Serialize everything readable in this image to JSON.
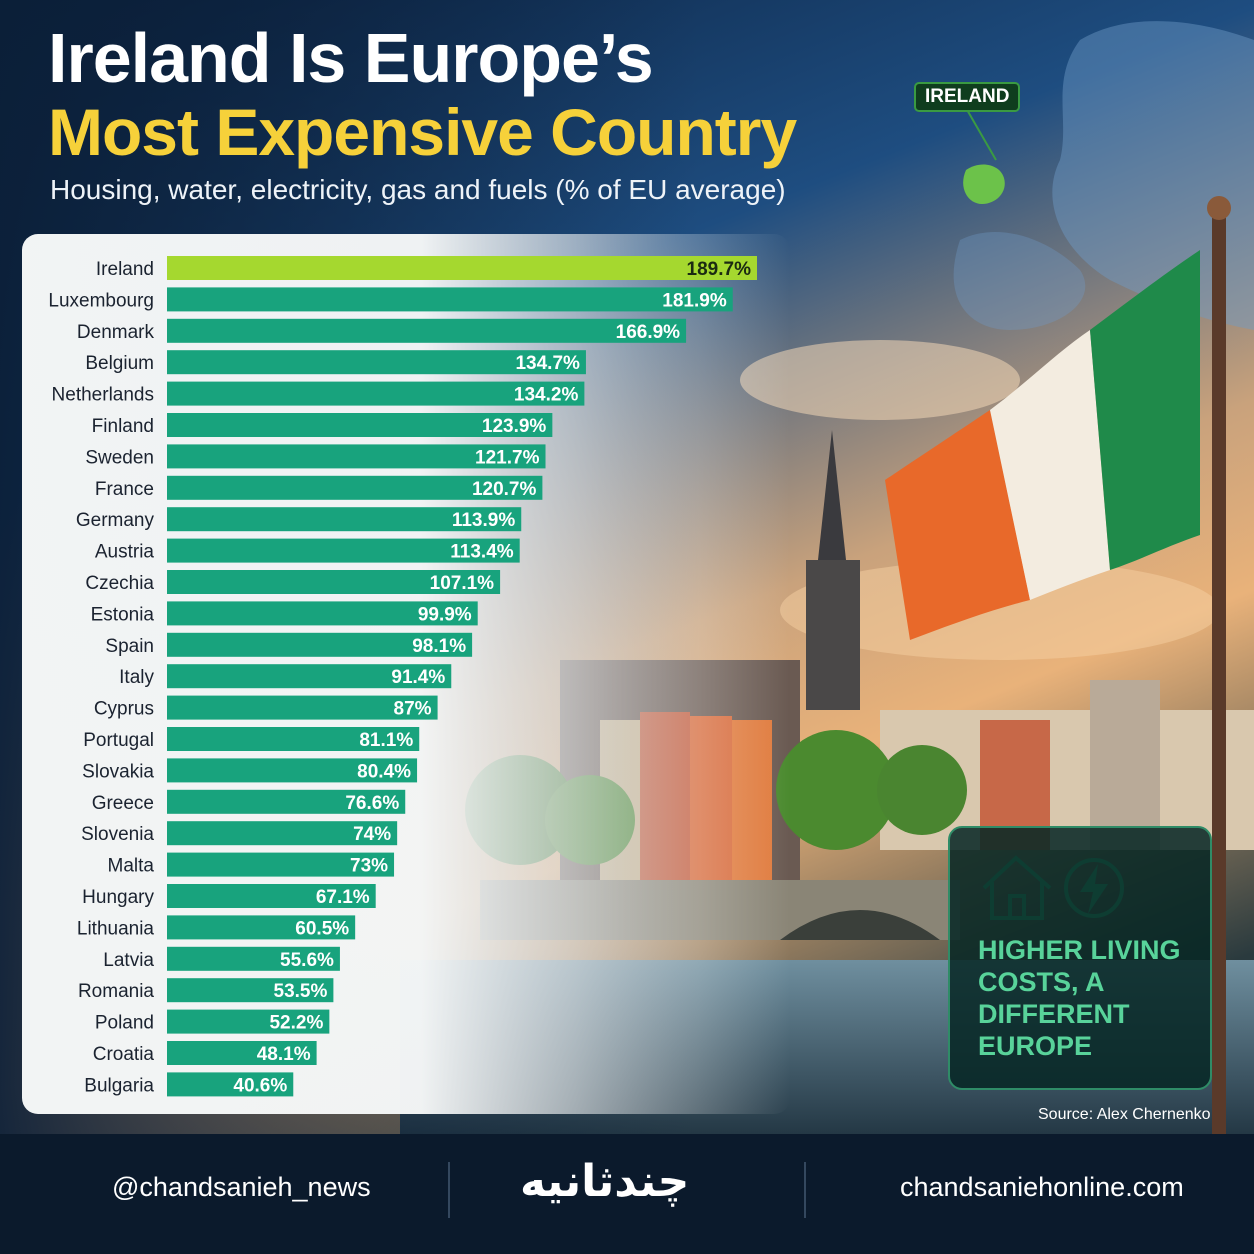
{
  "title_line1": "Ireland Is Europe’s",
  "title_line2": "Most Expensive Country",
  "subtitle": "Housing, water, electricity, gas and fuels (% of EU average)",
  "map_tag": "IRELAND",
  "callout": "HIGHER LIVING COSTS, A DIFFERENT EUROPE",
  "source": "Source: Alex Chernenko",
  "footer": {
    "telegram": "@chandsanieh_news",
    "brand": "چندثانیه",
    "website": "chandsaniehonline.com"
  },
  "icons": [
    "telegram-icon",
    "stopwatch-icon",
    "globe-icon",
    "house-icon",
    "lightning-icon"
  ],
  "colors": {
    "highlight_bar": "#a5d82f",
    "bar": "#18a37d",
    "title_accent": "#f6d13a",
    "callout_text": "#58d39a",
    "footer_bg": "#0b1a2c"
  },
  "chart_data": {
    "type": "bar",
    "orientation": "horizontal",
    "value_suffix": "%",
    "highlight": "Ireland",
    "categories": [
      "Ireland",
      "Luxembourg",
      "Denmark",
      "Belgium",
      "Netherlands",
      "Finland",
      "Sweden",
      "France",
      "Germany",
      "Austria",
      "Czechia",
      "Estonia",
      "Spain",
      "Italy",
      "Cyprus",
      "Portugal",
      "Slovakia",
      "Greece",
      "Slovenia",
      "Malta",
      "Hungary",
      "Lithuania",
      "Latvia",
      "Romania",
      "Poland",
      "Croatia",
      "Bulgaria"
    ],
    "values": [
      189.7,
      181.9,
      166.9,
      134.7,
      134.2,
      123.9,
      121.7,
      120.7,
      113.9,
      113.4,
      107.1,
      99.9,
      98.1,
      91.4,
      87,
      81.1,
      80.4,
      76.6,
      74,
      73,
      67.1,
      60.5,
      55.6,
      53.5,
      52.2,
      48.1,
      40.6
    ],
    "labels": [
      "189.7%",
      "181.9%",
      "166.9%",
      "134.7%",
      "134.2%",
      "123.9%",
      "121.7%",
      "120.7%",
      "113.9%",
      "113.4%",
      "107.1%",
      "99.9%",
      "98.1%",
      "91.4%",
      "87%",
      "81.1%",
      "80.4%",
      "76.6%",
      "74%",
      "73%",
      "67.1%",
      "60.5%",
      "55.6%",
      "53.5%",
      "52.2%",
      "48.1%",
      "40.6%"
    ],
    "xlim": [
      0,
      189.7
    ],
    "grid": false,
    "legend": "none"
  }
}
